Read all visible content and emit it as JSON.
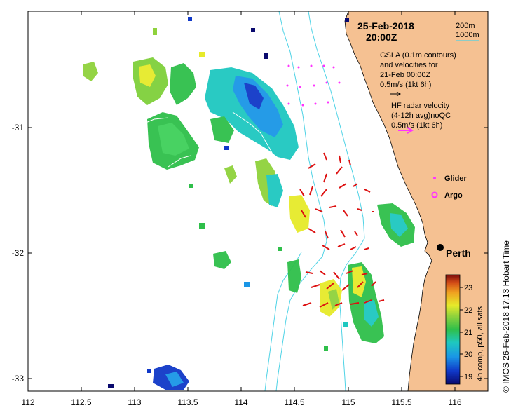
{
  "header": {
    "date": "25-Feb-2018",
    "time": "20:00Z"
  },
  "legend": {
    "isobath_200": "200m",
    "isobath_1000": "1000m",
    "gsla_line1": "GSLA (0.1m contours)",
    "gsla_line2": "and velocities for",
    "gsla_line3": "21-Feb 00:00Z",
    "gsla_scale": "0.5m/s (1kt 6h)",
    "hf_line1": "HF radar velocity",
    "hf_line2": "(4-12h avg)noQC",
    "hf_scale": "0.5m/s (1kt 6h)",
    "glider": "Glider",
    "argo": "Argo"
  },
  "place": {
    "city": "Perth"
  },
  "axes": {
    "x_ticks": [
      "112",
      "112.5",
      "113",
      "113.5",
      "114",
      "114.5",
      "115",
      "115.5",
      "116"
    ],
    "y_ticks": [
      "-31",
      "-32",
      "-33"
    ]
  },
  "colorbar": {
    "title": "4h comp, p50, all sats",
    "ticks": [
      "23",
      "22",
      "21",
      "20",
      "19"
    ]
  },
  "credit": "© IMOS 26-Feb-2018 17:13 Hobart Time",
  "colors": {
    "land": "#f5c192",
    "isobath": "#4fd3e6",
    "hf_arrow": "#dd1111",
    "glider": "#ff33ff",
    "gsla_contour": "#ffffff"
  }
}
